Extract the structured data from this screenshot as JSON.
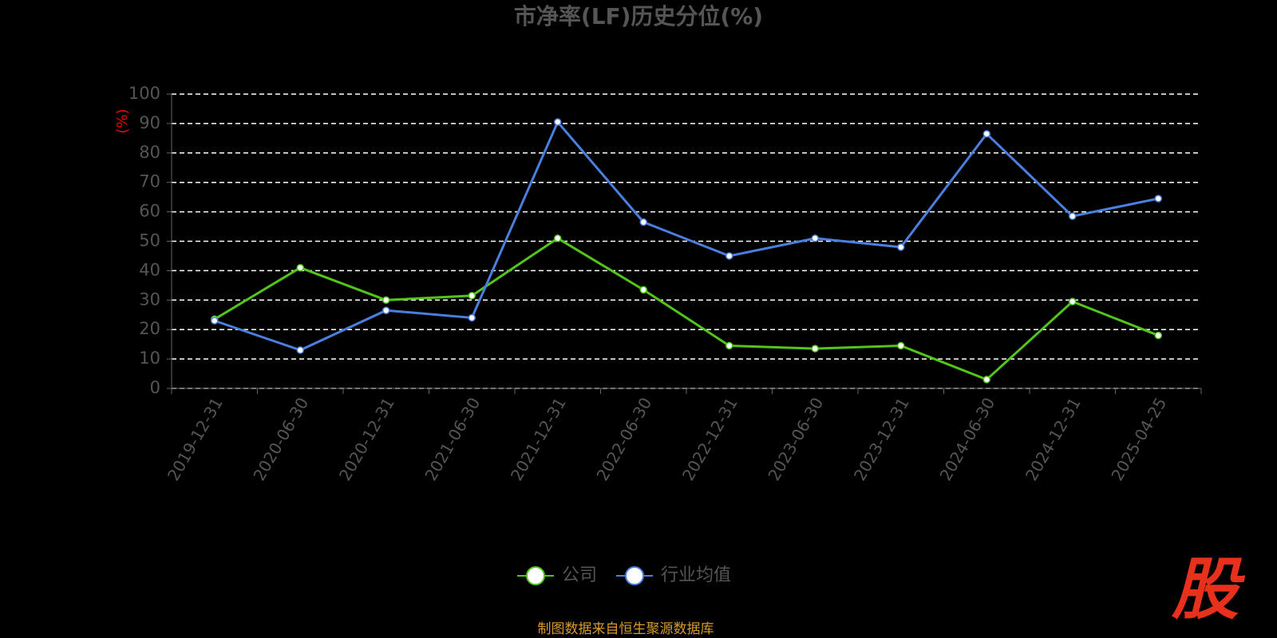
{
  "chart_data": {
    "type": "line",
    "title": "市净率(LF)历史分位(%)",
    "y_label": "(%)",
    "categories": [
      "2019-12-31",
      "2020-06-30",
      "2020-12-31",
      "2021-06-30",
      "2021-12-31",
      "2022-06-30",
      "2022-12-31",
      "2023-06-30",
      "2023-12-31",
      "2024-06-30",
      "2024-12-31",
      "2025-04-25"
    ],
    "series": [
      {
        "name": "公司",
        "color": "#52c41a",
        "values": [
          23.5,
          41,
          30,
          31.5,
          51,
          33.5,
          14.5,
          13.5,
          14.5,
          3,
          29.5,
          18
        ]
      },
      {
        "name": "行业均值",
        "color": "#4a7fe0",
        "values": [
          23,
          13,
          26.5,
          24,
          90.5,
          56.5,
          45,
          51,
          48,
          86.5,
          58.5,
          64.5
        ]
      }
    ],
    "ylim": [
      0,
      100
    ],
    "yticks": [
      0,
      10,
      20,
      30,
      40,
      50,
      60,
      70,
      80,
      90,
      100
    ],
    "grid": true,
    "legend": "bottom",
    "source": "制图数据来自恒生聚源数据库",
    "logo": "股"
  }
}
